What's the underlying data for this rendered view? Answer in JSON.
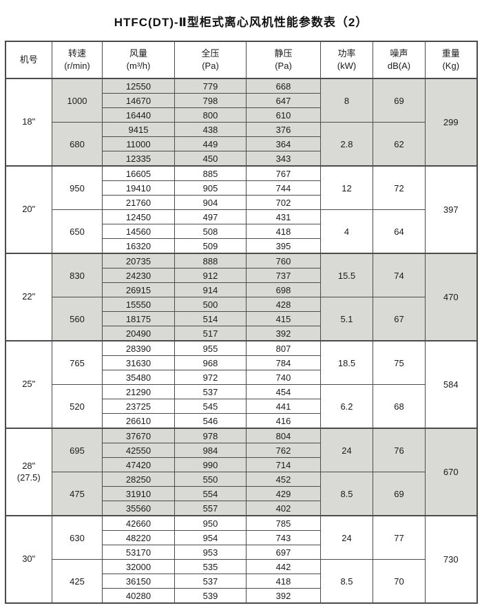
{
  "page_title": "HTFC(DT)-Ⅱ型柜式离心风机性能参数表（2）",
  "colors": {
    "shaded_row": "#d9d9d6",
    "border": "#4a4a4a",
    "text": "#1a1a1a",
    "background": "#ffffff"
  },
  "table": {
    "headers": [
      {
        "name": "机号",
        "unit": ""
      },
      {
        "name": "转速",
        "unit": "(r/min)"
      },
      {
        "name": "风量",
        "unit": "(m³/h)"
      },
      {
        "name": "全压",
        "unit": "(Pa)"
      },
      {
        "name": "静压",
        "unit": "(Pa)"
      },
      {
        "name": "功率",
        "unit": "(kW)"
      },
      {
        "name": "噪声",
        "unit": "dB(A)"
      },
      {
        "name": "重量",
        "unit": "(Kg)"
      }
    ],
    "groups": [
      {
        "model": "18\"",
        "model_sub": "",
        "weight": "299",
        "shaded": true,
        "blocks": [
          {
            "speed": "1000",
            "power": "8",
            "noise": "69",
            "rows": [
              [
                "12550",
                "779",
                "668"
              ],
              [
                "14670",
                "798",
                "647"
              ],
              [
                "16440",
                "800",
                "610"
              ]
            ]
          },
          {
            "speed": "680",
            "power": "2.8",
            "noise": "62",
            "rows": [
              [
                "9415",
                "438",
                "376"
              ],
              [
                "11000",
                "449",
                "364"
              ],
              [
                "12335",
                "450",
                "343"
              ]
            ]
          }
        ]
      },
      {
        "model": "20\"",
        "model_sub": "",
        "weight": "397",
        "shaded": false,
        "blocks": [
          {
            "speed": "950",
            "power": "12",
            "noise": "72",
            "rows": [
              [
                "16605",
                "885",
                "767"
              ],
              [
                "19410",
                "905",
                "744"
              ],
              [
                "21760",
                "904",
                "702"
              ]
            ]
          },
          {
            "speed": "650",
            "power": "4",
            "noise": "64",
            "rows": [
              [
                "12450",
                "497",
                "431"
              ],
              [
                "14560",
                "508",
                "418"
              ],
              [
                "16320",
                "509",
                "395"
              ]
            ]
          }
        ]
      },
      {
        "model": "22\"",
        "model_sub": "",
        "weight": "470",
        "shaded": true,
        "blocks": [
          {
            "speed": "830",
            "power": "15.5",
            "noise": "74",
            "rows": [
              [
                "20735",
                "888",
                "760"
              ],
              [
                "24230",
                "912",
                "737"
              ],
              [
                "26915",
                "914",
                "698"
              ]
            ]
          },
          {
            "speed": "560",
            "power": "5.1",
            "noise": "67",
            "rows": [
              [
                "15550",
                "500",
                "428"
              ],
              [
                "18175",
                "514",
                "415"
              ],
              [
                "20490",
                "517",
                "392"
              ]
            ]
          }
        ]
      },
      {
        "model": "25\"",
        "model_sub": "",
        "weight": "584",
        "shaded": false,
        "blocks": [
          {
            "speed": "765",
            "power": "18.5",
            "noise": "75",
            "rows": [
              [
                "28390",
                "955",
                "807"
              ],
              [
                "31630",
                "968",
                "784"
              ],
              [
                "35480",
                "972",
                "740"
              ]
            ]
          },
          {
            "speed": "520",
            "power": "6.2",
            "noise": "68",
            "rows": [
              [
                "21290",
                "537",
                "454"
              ],
              [
                "23725",
                "545",
                "441"
              ],
              [
                "26610",
                "546",
                "416"
              ]
            ]
          }
        ]
      },
      {
        "model": "28\"",
        "model_sub": "(27.5)",
        "weight": "670",
        "shaded": true,
        "blocks": [
          {
            "speed": "695",
            "power": "24",
            "noise": "76",
            "rows": [
              [
                "37670",
                "978",
                "804"
              ],
              [
                "42550",
                "984",
                "762"
              ],
              [
                "47420",
                "990",
                "714"
              ]
            ]
          },
          {
            "speed": "475",
            "power": "8.5",
            "noise": "69",
            "rows": [
              [
                "28250",
                "550",
                "452"
              ],
              [
                "31910",
                "554",
                "429"
              ],
              [
                "35560",
                "557",
                "402"
              ]
            ]
          }
        ]
      },
      {
        "model": "30\"",
        "model_sub": "",
        "weight": "730",
        "shaded": false,
        "blocks": [
          {
            "speed": "630",
            "power": "24",
            "noise": "77",
            "rows": [
              [
                "42660",
                "950",
                "785"
              ],
              [
                "48220",
                "954",
                "743"
              ],
              [
                "53170",
                "953",
                "697"
              ]
            ]
          },
          {
            "speed": "425",
            "power": "8.5",
            "noise": "70",
            "rows": [
              [
                "32000",
                "535",
                "442"
              ],
              [
                "36150",
                "537",
                "418"
              ],
              [
                "40280",
                "539",
                "392"
              ]
            ]
          }
        ]
      }
    ]
  }
}
